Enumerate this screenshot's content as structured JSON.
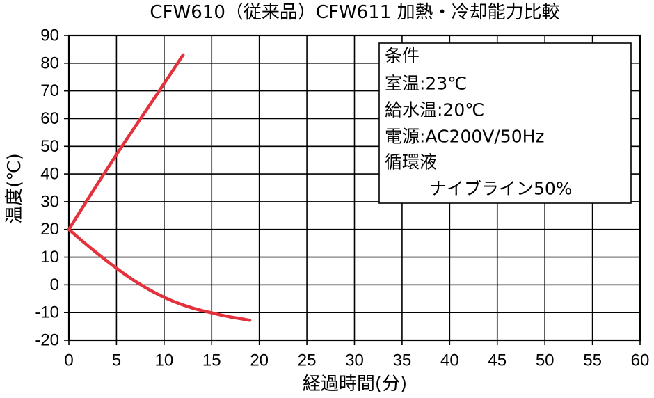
{
  "chart_data": {
    "type": "line",
    "title": "CFW610（従来品）CFW611 加熱・冷却能力比較",
    "xlabel": "経過時間(分)",
    "ylabel": "温度(℃)",
    "xlim": [
      0,
      60
    ],
    "ylim": [
      -20,
      90
    ],
    "xticks": [
      0,
      5,
      10,
      15,
      20,
      25,
      30,
      35,
      40,
      45,
      50,
      55,
      60
    ],
    "yticks": [
      -20,
      -10,
      0,
      10,
      20,
      30,
      40,
      50,
      60,
      70,
      80,
      90
    ],
    "grid": true,
    "series": [
      {
        "color": "#e3323b",
        "x": [
          0,
          1,
          2,
          3,
          4,
          5,
          6,
          7,
          8,
          9,
          10,
          11,
          12
        ],
        "y": [
          20,
          25.5,
          31,
          36.4,
          41.7,
          47,
          52.2,
          57.3,
          62.4,
          67.5,
          72.6,
          77.8,
          83
        ]
      },
      {
        "color": "#e3323b",
        "x": [
          0,
          1,
          2,
          3,
          4,
          5,
          6,
          7,
          8,
          9,
          10,
          11,
          12,
          13,
          14,
          15,
          16,
          17,
          18,
          19
        ],
        "y": [
          20,
          17,
          14.1,
          11.3,
          8.6,
          6.0,
          3.5,
          1.2,
          -0.9,
          -2.8,
          -4.5,
          -6.0,
          -7.3,
          -8.4,
          -9.3,
          -10.1,
          -10.9,
          -11.6,
          -12.2,
          -12.8
        ]
      }
    ],
    "annotation": {
      "placement": "top-right",
      "lines": [
        "条件",
        "室温:23℃",
        "給水温:20℃",
        "電源:AC200V/50Hz",
        "循環液",
        "ナイブライン50%"
      ]
    }
  }
}
